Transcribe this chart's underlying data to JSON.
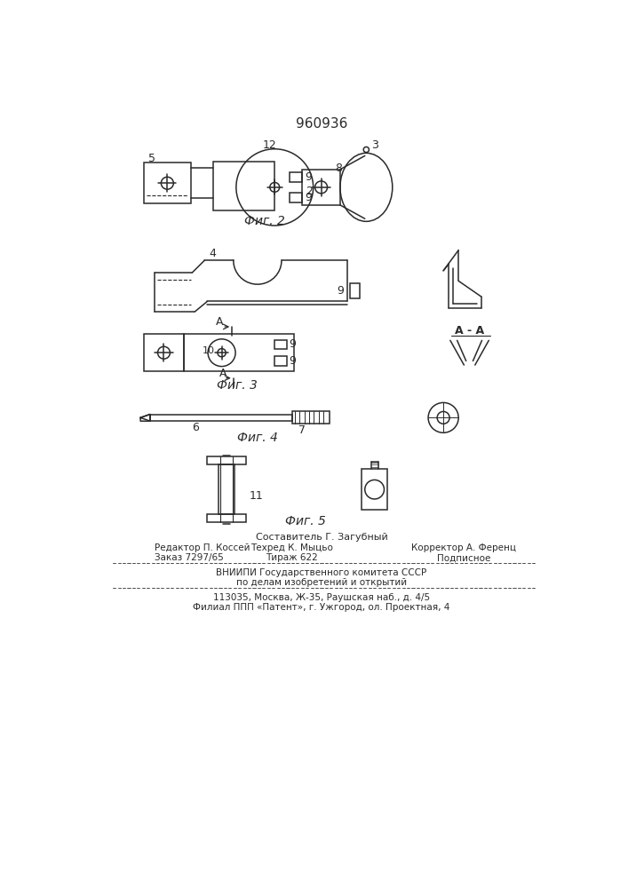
{
  "title": "960936",
  "title_fontsize": 11,
  "background_color": "#ffffff",
  "line_color": "#2a2a2a",
  "fig2_label": "Фиг. 2",
  "fig3_label": "Фиг. 3",
  "fig4_label": "Фиг. 4",
  "fig5_label": "Фиг. 5",
  "footer_lines": [
    "Составитель Г. Загубный",
    "Редактор П. Коссей    Техред К. Мыцьо         Корректор А. Ференц",
    "Заказ 7297/65            Тираж 622                  Подписное",
    "ВНИИПИ Государственного комитета СССР",
    "по делам изобретений и открытий",
    "113035, Москва, Ж-35, Раушская наб., д. 4/5",
    "Филиал ППП «Патент», г. Ужгород, ол. Проектная, 4"
  ]
}
